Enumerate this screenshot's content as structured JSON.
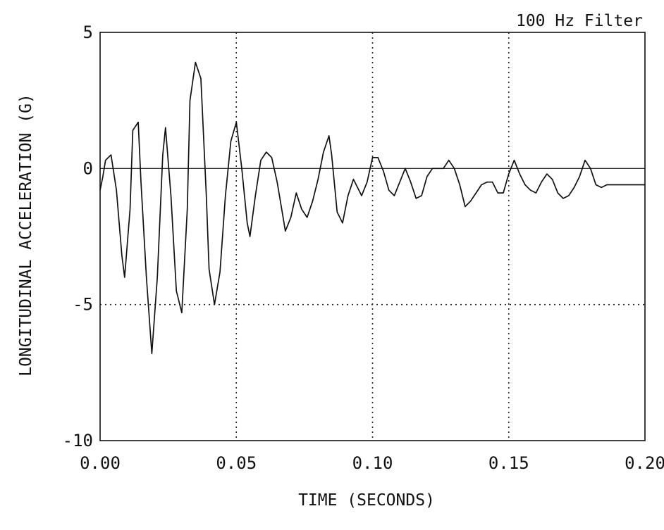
{
  "chart_data": {
    "type": "line",
    "title": "100 Hz Filter",
    "xlabel": "TIME (SECONDS)",
    "ylabel": "LONGITUDINAL ACCELERATION (G)",
    "xlim": [
      0,
      0.2
    ],
    "ylim": [
      -10,
      5
    ],
    "xticks": [
      0.0,
      0.05,
      0.1,
      0.15,
      0.2
    ],
    "xtick_labels": [
      "0.00",
      "0.05",
      "0.10",
      "0.15",
      "0.20"
    ],
    "yticks": [
      5,
      0,
      -5,
      -10
    ],
    "ytick_labels": [
      "5",
      "0",
      "-5",
      "-10"
    ],
    "grid": {
      "x": [
        0.05,
        0.1,
        0.15
      ],
      "y": [
        -5
      ],
      "style": "dotted"
    },
    "zero_line": true,
    "series": [
      {
        "x": [
          0.0,
          0.001,
          0.002,
          0.004,
          0.006,
          0.008,
          0.009,
          0.011,
          0.012,
          0.014,
          0.015,
          0.017,
          0.019,
          0.021,
          0.023,
          0.024,
          0.026,
          0.028,
          0.03,
          0.032,
          0.033,
          0.035,
          0.037,
          0.039,
          0.04,
          0.042,
          0.044,
          0.046,
          0.048,
          0.05,
          0.052,
          0.054,
          0.055,
          0.057,
          0.059,
          0.061,
          0.063,
          0.065,
          0.067,
          0.068,
          0.07,
          0.072,
          0.074,
          0.076,
          0.078,
          0.08,
          0.082,
          0.084,
          0.085,
          0.087,
          0.089,
          0.091,
          0.093,
          0.095,
          0.096,
          0.098,
          0.1,
          0.102,
          0.104,
          0.106,
          0.108,
          0.11,
          0.112,
          0.114,
          0.116,
          0.118,
          0.12,
          0.122,
          0.124,
          0.126,
          0.128,
          0.13,
          0.132,
          0.134,
          0.136,
          0.138,
          0.14,
          0.142,
          0.144,
          0.146,
          0.148,
          0.15,
          0.152,
          0.154,
          0.156,
          0.158,
          0.16,
          0.162,
          0.164,
          0.166,
          0.168,
          0.17,
          0.172,
          0.174,
          0.176,
          0.178,
          0.18,
          0.182,
          0.184,
          0.186,
          0.188,
          0.19,
          0.192,
          0.194,
          0.196,
          0.198,
          0.2
        ],
        "values": [
          -0.8,
          -0.3,
          0.3,
          0.5,
          -0.8,
          -3.2,
          -4.0,
          -1.5,
          1.4,
          1.7,
          -0.5,
          -4.0,
          -6.8,
          -4.0,
          0.5,
          1.5,
          -1.0,
          -4.5,
          -5.3,
          -1.5,
          2.5,
          3.9,
          3.3,
          -1.0,
          -3.7,
          -5.0,
          -3.8,
          -1.0,
          1.0,
          1.7,
          0.0,
          -2.0,
          -2.5,
          -1.0,
          0.3,
          0.6,
          0.4,
          -0.5,
          -1.7,
          -2.3,
          -1.8,
          -0.9,
          -1.5,
          -1.8,
          -1.2,
          -0.4,
          0.6,
          1.2,
          0.5,
          -1.6,
          -2.0,
          -1.0,
          -0.4,
          -0.8,
          -1.0,
          -0.5,
          0.4,
          0.4,
          -0.1,
          -0.8,
          -1.0,
          -0.5,
          0.0,
          -0.5,
          -1.1,
          -1.0,
          -0.3,
          0.0,
          0.0,
          0.0,
          0.3,
          0.0,
          -0.6,
          -1.4,
          -1.2,
          -0.9,
          -0.6,
          -0.5,
          -0.5,
          -0.9,
          -0.9,
          -0.2,
          0.3,
          -0.2,
          -0.6,
          -0.8,
          -0.9,
          -0.5,
          -0.2,
          -0.4,
          -0.9,
          -1.1,
          -1.0,
          -0.7,
          -0.3,
          0.3,
          0.0,
          -0.6,
          -0.7,
          -0.6,
          -0.6,
          -0.6,
          -0.6,
          -0.6,
          -0.6,
          -0.6,
          -0.6
        ]
      }
    ]
  }
}
